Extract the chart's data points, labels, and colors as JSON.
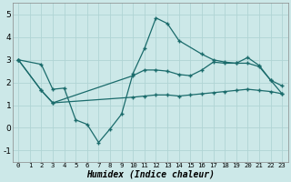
{
  "xlabel": "Humidex (Indice chaleur)",
  "xlim": [
    -0.5,
    23.5
  ],
  "ylim": [
    -1.5,
    5.5
  ],
  "xticks": [
    0,
    1,
    2,
    3,
    4,
    5,
    6,
    7,
    8,
    9,
    10,
    11,
    12,
    13,
    14,
    15,
    16,
    17,
    18,
    19,
    20,
    21,
    22,
    23
  ],
  "yticks": [
    -1,
    0,
    1,
    2,
    3,
    4,
    5
  ],
  "background_color": "#cce8e8",
  "grid_color": "#b0d4d4",
  "line_color": "#1a6b6b",
  "line1": {
    "x": [
      0,
      2,
      3,
      4,
      5,
      6,
      7,
      8,
      9,
      10,
      11,
      12,
      13,
      14,
      16,
      17,
      18,
      19,
      20,
      21,
      22,
      23
    ],
    "y": [
      3.0,
      2.8,
      1.7,
      1.75,
      0.35,
      0.15,
      -0.65,
      -0.05,
      0.6,
      2.4,
      3.5,
      4.85,
      4.6,
      3.85,
      3.25,
      3.0,
      2.9,
      2.85,
      3.1,
      2.75,
      2.1,
      1.85
    ]
  },
  "line2": {
    "x": [
      0,
      2,
      3,
      10,
      11,
      12,
      13,
      14,
      15,
      16,
      17,
      18,
      19,
      20,
      21,
      22,
      23
    ],
    "y": [
      3.0,
      1.65,
      1.1,
      2.3,
      2.55,
      2.55,
      2.5,
      2.35,
      2.3,
      2.55,
      2.9,
      2.85,
      2.85,
      2.85,
      2.7,
      2.1,
      1.5
    ]
  },
  "line3": {
    "x": [
      0,
      2,
      3,
      10,
      11,
      12,
      13,
      14,
      15,
      16,
      17,
      18,
      19,
      20,
      21,
      22,
      23
    ],
    "y": [
      3.0,
      1.65,
      1.1,
      1.35,
      1.4,
      1.45,
      1.45,
      1.4,
      1.45,
      1.5,
      1.55,
      1.6,
      1.65,
      1.7,
      1.65,
      1.6,
      1.5
    ]
  }
}
